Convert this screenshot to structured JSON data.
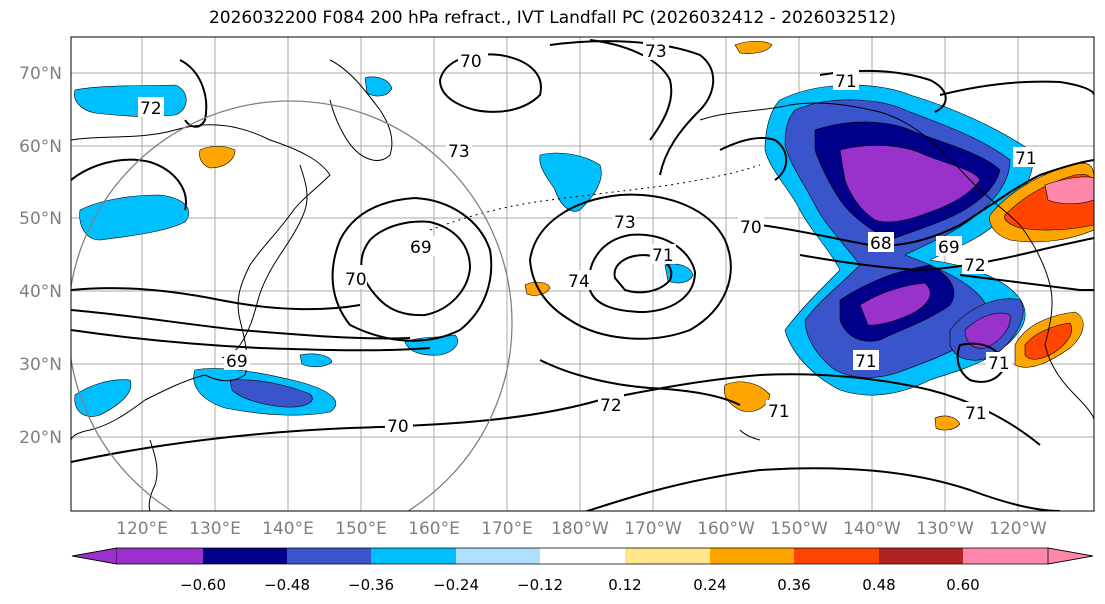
{
  "title": "2026032200 F084 200 hPa refract., IVT Landfall PC (2026032412 - 2026032512)",
  "lat_labels": [
    "70°N",
    "60°N",
    "50°N",
    "40°N",
    "30°N",
    "20°N"
  ],
  "lon_labels": [
    "120°E",
    "130°E",
    "140°E",
    "150°E",
    "160°E",
    "170°E",
    "180°W",
    "170°W",
    "160°W",
    "150°W",
    "140°W",
    "130°W",
    "120°W"
  ],
  "contour_labels": [
    "70",
    "73",
    "71",
    "72",
    "73",
    "69",
    "70",
    "73",
    "71",
    "70",
    "68",
    "69",
    "72",
    "74",
    "69",
    "72",
    "71",
    "71",
    "70",
    "71",
    "71",
    "71"
  ],
  "colorbar": {
    "colors": [
      "#9932cc",
      "#00008b",
      "#3a55cc",
      "#00bfff",
      "#b0e0ff",
      "#ffffff",
      "#ffe68a",
      "#ffa500",
      "#ff4500",
      "#b22222",
      "#ff88aa"
    ],
    "extend_low_color": "#9932cc",
    "extend_high_color": "#ff88aa",
    "tick_labels": [
      "−0.60",
      "−0.48",
      "−0.36",
      "−0.24",
      "−0.12",
      "0.12",
      "0.24",
      "0.36",
      "0.48",
      "0.60"
    ]
  }
}
